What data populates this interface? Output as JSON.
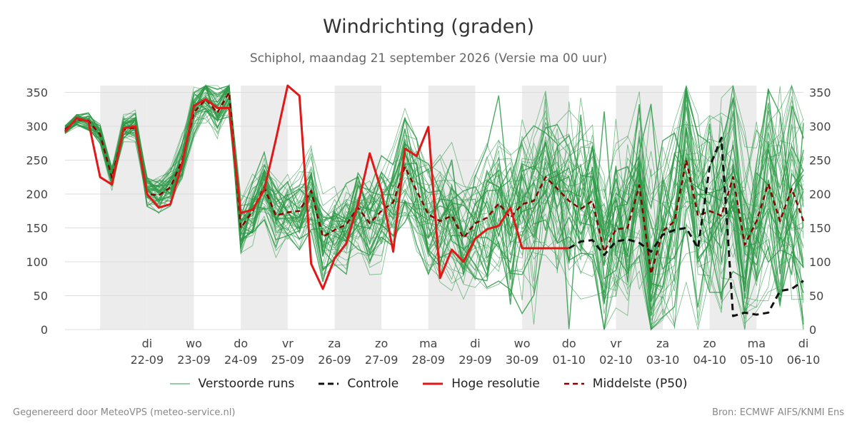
{
  "header": {
    "title": "Windrichting (graden)",
    "subtitle": "Schiphol, maandag 21 september 2026 (Versie ma 00 uur)"
  },
  "legend": {
    "ensemble": "Verstoorde runs",
    "control": "Controle",
    "hires": "Hoge resolutie",
    "median": "Middelste (P50)"
  },
  "footer": {
    "left": "Gegenereerd door MeteoVPS (meteo-service.nl)",
    "right": "Bron: ECMWF AIFS/KNMI Ens"
  },
  "colors": {
    "ensemble": "#2e9a48",
    "control": "#111111",
    "hires": "#e01818",
    "median": "#8b0000",
    "night_shade": "#ececec",
    "grid": "#dddddd"
  },
  "chart_data": {
    "type": "line",
    "title": "Windrichting (graden)",
    "subtitle": "Schiphol, maandag 21 september 2026 (Versie ma 00 uur)",
    "x_unit": "days since 2026-09-21 00:00",
    "xlim": [
      -0.75,
      15
    ],
    "ylim": [
      0,
      360
    ],
    "y_ticks": [
      0,
      50,
      100,
      150,
      200,
      250,
      300,
      350
    ],
    "y_axis_both_sides": true,
    "grid": "horizontal",
    "legend_position": "bottom",
    "x_ticks": [
      {
        "x": 1,
        "day": "di",
        "date": "22-09"
      },
      {
        "x": 2,
        "day": "wo",
        "date": "23-09"
      },
      {
        "x": 3,
        "day": "do",
        "date": "24-09"
      },
      {
        "x": 4,
        "day": "vr",
        "date": "25-09"
      },
      {
        "x": 5,
        "day": "za",
        "date": "26-09"
      },
      {
        "x": 6,
        "day": "zo",
        "date": "27-09"
      },
      {
        "x": 7,
        "day": "ma",
        "date": "28-09"
      },
      {
        "x": 8,
        "day": "di",
        "date": "29-09"
      },
      {
        "x": 9,
        "day": "wo",
        "date": "30-09"
      },
      {
        "x": 10,
        "day": "do",
        "date": "01-10"
      },
      {
        "x": 11,
        "day": "vr",
        "date": "02-10"
      },
      {
        "x": 12,
        "day": "za",
        "date": "03-10"
      },
      {
        "x": 13,
        "day": "zo",
        "date": "04-10"
      },
      {
        "x": 14,
        "day": "ma",
        "date": "05-10"
      },
      {
        "x": 15,
        "day": "di",
        "date": "06-10"
      }
    ],
    "shaded_bands": [
      [
        0.0,
        1.0
      ],
      [
        1.0,
        2.0
      ],
      [
        3.0,
        4.0
      ],
      [
        5.0,
        6.0
      ],
      [
        7.0,
        8.0
      ],
      [
        9.0,
        10.0
      ],
      [
        11.0,
        12.0
      ],
      [
        13.0,
        14.0
      ]
    ],
    "series": [
      {
        "name": "Hoge resolutie",
        "style": "solid",
        "x": [
          -0.75,
          -0.5,
          -0.25,
          0,
          0.25,
          0.5,
          0.75,
          1.0,
          1.25,
          1.5,
          1.75,
          2.0,
          2.25,
          2.5,
          2.75,
          3.0,
          3.25,
          3.5,
          3.75,
          4.0,
          4.25,
          4.5,
          4.75,
          5.0,
          5.25,
          5.5,
          5.75,
          6.0,
          6.25,
          6.5,
          6.75,
          7.0,
          7.25,
          7.5,
          7.75,
          8.0,
          8.25,
          8.5,
          8.75,
          9.0,
          9.25,
          9.5,
          9.75,
          10.0
        ],
        "y": [
          292,
          312,
          307,
          225,
          214,
          297,
          300,
          200,
          180,
          185,
          245,
          330,
          340,
          327,
          327,
          172,
          177,
          206,
          281,
          360,
          345,
          97,
          60,
          105,
          127,
          185,
          260,
          205,
          115,
          267,
          256,
          299,
          76,
          118,
          100,
          134,
          148,
          153,
          180,
          120,
          120,
          120,
          120,
          120
        ]
      },
      {
        "name": "Controle",
        "style": "dashed",
        "x": [
          10.0,
          10.25,
          10.5,
          10.75,
          11.0,
          11.25,
          11.5,
          11.75,
          12.0,
          12.25,
          12.5,
          12.75,
          13.0,
          13.25,
          13.5,
          13.75,
          14.0,
          14.25,
          14.5,
          14.75,
          15.0
        ],
        "y": [
          120,
          130,
          132,
          110,
          130,
          133,
          128,
          115,
          140,
          147,
          150,
          120,
          240,
          283,
          20,
          25,
          22,
          25,
          57,
          60,
          72
        ]
      },
      {
        "name": "Middelste (P50)",
        "style": "dashed",
        "x": [
          -0.75,
          -0.5,
          -0.25,
          0,
          0.25,
          0.5,
          0.75,
          1.0,
          1.25,
          1.5,
          1.75,
          2.0,
          2.25,
          2.5,
          2.75,
          3.0,
          3.25,
          3.5,
          3.75,
          4.0,
          4.25,
          4.5,
          4.75,
          5.0,
          5.25,
          5.5,
          5.75,
          6.0,
          6.25,
          6.5,
          6.75,
          7.0,
          7.25,
          7.5,
          7.75,
          8.0,
          8.25,
          8.5,
          8.75,
          9.0,
          9.25,
          9.5,
          9.75,
          10.0,
          10.25,
          10.5,
          10.75,
          11.0,
          11.25,
          11.5,
          11.75,
          12.0,
          12.25,
          12.5,
          12.75,
          13.0,
          13.25,
          13.5,
          13.75,
          14.0,
          14.25,
          14.5,
          14.75,
          15.0
        ],
        "y": [
          295,
          310,
          308,
          288,
          224,
          295,
          298,
          200,
          198,
          210,
          250,
          320,
          340,
          320,
          350,
          150,
          175,
          210,
          168,
          173,
          175,
          205,
          137,
          147,
          155,
          180,
          157,
          175,
          188,
          240,
          205,
          170,
          160,
          168,
          135,
          157,
          165,
          186,
          165,
          185,
          190,
          225,
          208,
          190,
          178,
          190,
          115,
          148,
          150,
          213,
          82,
          145,
          160,
          250,
          168,
          175,
          168,
          225,
          125,
          160,
          215,
          160,
          208,
          160
        ]
      }
    ],
    "ensemble": {
      "name": "Verstoorde runs",
      "members": 50,
      "x_start": -0.75,
      "x_step": 0.25,
      "x_end": 15,
      "note": "spread envelope drawn as many thin lines around the median"
    }
  }
}
